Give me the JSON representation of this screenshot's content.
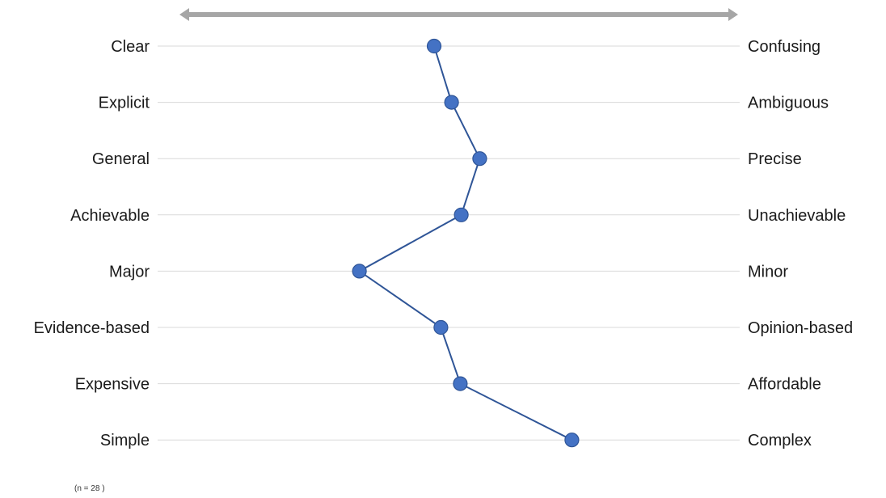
{
  "chart_data": {
    "type": "line",
    "title": "",
    "left_labels": [
      "Clear",
      "Explicit",
      "General",
      "Achievable",
      "Major",
      "Evidence-based",
      "Expensive",
      "Simple"
    ],
    "right_labels": [
      "Confusing",
      "Ambiguous",
      "Precise",
      "Unachievable",
      "Minor",
      "Opinion-based",
      "Affordable",
      "Complex"
    ],
    "series": [
      {
        "values": [
          3.85,
          4.03,
          4.32,
          4.13,
          3.08,
          3.92,
          4.12,
          5.27
        ]
      }
    ],
    "xlim": [
      1,
      7
    ],
    "grid": true,
    "legend": "none",
    "arrow": "double-headed, spanning scale from left adjective to right adjective",
    "note": "(n = 28 )"
  },
  "colors": {
    "line": "#2f5597",
    "marker_fill": "#4472c4",
    "marker_stroke": "#2f5597",
    "gridline": "#d9d9d9",
    "arrow": "#a6a6a6"
  }
}
